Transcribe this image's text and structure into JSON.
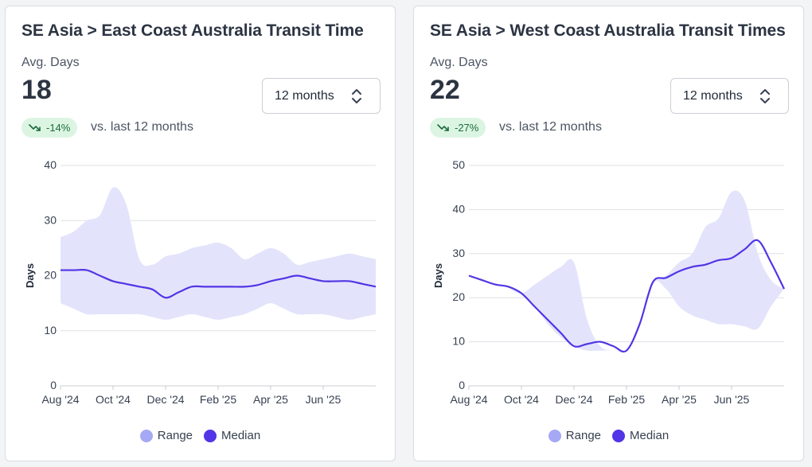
{
  "colors": {
    "range_fill": "#e3e4fb",
    "range_legend": "#a5a9f5",
    "median": "#5135e6",
    "grid": "#dfe1e6",
    "badge_bg": "#dcf5e3",
    "badge_text": "#1c6b3a"
  },
  "cards": [
    {
      "title": "SE Asia > East Coast Australia Transit Time",
      "metric_label": "Avg. Days",
      "metric_value": "18",
      "period": "12 months",
      "change": "-14%",
      "compare_text": "vs. last 12 months",
      "legend": {
        "range": "Range",
        "median": "Median"
      }
    },
    {
      "title": "SE Asia > West Coast Australia Transit Times",
      "metric_label": "Avg. Days",
      "metric_value": "22",
      "period": "12 months",
      "change": "-27%",
      "compare_text": "vs. last 12 months",
      "legend": {
        "range": "Range",
        "median": "Median"
      }
    }
  ],
  "chart_data": [
    {
      "type": "area",
      "title": "SE Asia > East Coast Australia Transit Time",
      "ylabel": "Days",
      "xlabel": "",
      "ylim": [
        0,
        40
      ],
      "yticks": [
        0,
        10,
        20,
        30,
        40
      ],
      "xlim": [
        0,
        12
      ],
      "x_ticks": [
        {
          "x": 0,
          "label": "Aug '24"
        },
        {
          "x": 2,
          "label": "Oct '24"
        },
        {
          "x": 4,
          "label": "Dec '24"
        },
        {
          "x": 6,
          "label": "Feb '25"
        },
        {
          "x": 8,
          "label": "Apr '25"
        },
        {
          "x": 10,
          "label": "Jun '25"
        }
      ],
      "grid": true,
      "legend_position": "bottom",
      "series": [
        {
          "name": "Range",
          "type": "band",
          "x": [
            0,
            0.5,
            1,
            1.5,
            2,
            2.5,
            3,
            3.5,
            4,
            4.5,
            5,
            5.5,
            6,
            6.5,
            7,
            7.5,
            8,
            8.5,
            9,
            9.5,
            10,
            10.5,
            11,
            11.5,
            12
          ],
          "upper": [
            27,
            28,
            30,
            31,
            36,
            33,
            23,
            22,
            23.5,
            24,
            25,
            25.5,
            26,
            25,
            23,
            24,
            25,
            24,
            22,
            22.5,
            23,
            23.5,
            24,
            23.5,
            23
          ],
          "lower": [
            15,
            14,
            13,
            13,
            13,
            13,
            13,
            12.5,
            12,
            12.5,
            13,
            12.5,
            12,
            12.5,
            13,
            14,
            15,
            14,
            13,
            13,
            13,
            12.5,
            12,
            12.5,
            13
          ]
        },
        {
          "name": "Median",
          "type": "line",
          "x": [
            0,
            0.5,
            1,
            1.5,
            2,
            2.5,
            3,
            3.5,
            4,
            4.5,
            5,
            5.5,
            6,
            6.5,
            7,
            7.5,
            8,
            8.5,
            9,
            9.5,
            10,
            10.5,
            11,
            11.5,
            12
          ],
          "values": [
            21,
            21,
            21,
            20,
            19,
            18.5,
            18,
            17.5,
            16,
            17,
            18,
            18,
            18,
            18,
            18,
            18.3,
            19,
            19.5,
            20,
            19.5,
            19,
            19,
            19,
            18.5,
            18
          ]
        }
      ]
    },
    {
      "type": "area",
      "title": "SE Asia > West Coast Australia Transit Times",
      "ylabel": "Days",
      "xlabel": "",
      "ylim": [
        0,
        50
      ],
      "yticks": [
        0,
        10,
        20,
        30,
        40,
        50
      ],
      "xlim": [
        0,
        12
      ],
      "x_ticks": [
        {
          "x": 0,
          "label": "Aug '24"
        },
        {
          "x": 2,
          "label": "Oct '24"
        },
        {
          "x": 4,
          "label": "Dec '24"
        },
        {
          "x": 6,
          "label": "Feb '25"
        },
        {
          "x": 8,
          "label": "Apr '25"
        },
        {
          "x": 10,
          "label": "Jun '25"
        }
      ],
      "grid": true,
      "legend_position": "bottom",
      "series": [
        {
          "name": "Range",
          "type": "band",
          "x": [
            0,
            0.5,
            1,
            1.5,
            2,
            2.5,
            3,
            3.5,
            4,
            4.5,
            5,
            5.5,
            6,
            6.5,
            7,
            7.5,
            8,
            8.5,
            9,
            9.5,
            10,
            10.5,
            11,
            11.5,
            12
          ],
          "upper": [
            25,
            24,
            23,
            22,
            21,
            23,
            25,
            27,
            28,
            15,
            9,
            8,
            8,
            10,
            23,
            25,
            28,
            30,
            36,
            38,
            44,
            42,
            30,
            24,
            22
          ],
          "lower": [
            25,
            24,
            23,
            22,
            21,
            18,
            14,
            11,
            9,
            8,
            8,
            8,
            8,
            10,
            23,
            22,
            18,
            16,
            15,
            14,
            14,
            13.5,
            13,
            18,
            22
          ]
        },
        {
          "name": "Median",
          "type": "line",
          "x": [
            0,
            0.5,
            1,
            1.5,
            2,
            2.5,
            3,
            3.5,
            4,
            4.5,
            5,
            5.5,
            6,
            6.5,
            7,
            7.5,
            8,
            8.5,
            9,
            9.5,
            10,
            10.5,
            11,
            11.5,
            12
          ],
          "values": [
            25,
            24,
            23,
            22.5,
            21,
            18,
            15,
            12,
            9,
            9.5,
            10,
            9,
            8,
            14,
            23.5,
            24.5,
            26,
            27,
            27.5,
            28.5,
            29,
            31,
            33,
            28,
            22
          ]
        }
      ]
    }
  ]
}
